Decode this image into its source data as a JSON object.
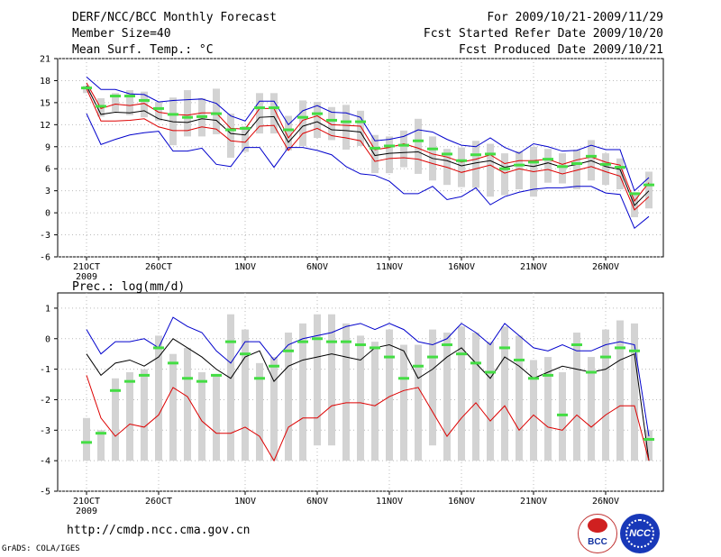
{
  "header": {
    "title": "DERF/NCC/BCC Monthly Forecast",
    "member_size": "Member Size=40",
    "variable": "Mean Surf. Temp.: °C",
    "period": "For 2009/10/21-2009/11/29",
    "fcst_started": "Fcst Started Refer Date 2009/10/20",
    "fcst_produced": "Fcst Produced Date 2009/10/21"
  },
  "footer": {
    "url": "http://cmdp.ncc.cma.gov.cn",
    "credit": "GrADS: COLA/IGES",
    "logo_bcc": "BCC",
    "logo_ncc": "NCC"
  },
  "colors": {
    "ensemble_bar": "#d3d3d3",
    "member_mark": "#44dd44",
    "max_line": "#0000cc",
    "mean_line": "#000000",
    "min_line": "#dd0000"
  },
  "chart_data": [
    {
      "type": "line",
      "title": "Mean Surf. Temp.: °C",
      "ylim": [
        -6,
        21
      ],
      "yticks": [
        "21",
        "18",
        "15",
        "12",
        "9",
        "6",
        "3",
        "0",
        "-3",
        "-6"
      ],
      "xtick_labels": [
        "21OCT",
        "26OCT",
        "1NOV",
        "6NOV",
        "11NOV",
        "16NOV",
        "21NOV",
        "26NOV"
      ],
      "year_label": "2009",
      "days": 40,
      "series": [
        {
          "name": "max",
          "values": [
            18.5,
            16.8,
            16.8,
            16.2,
            16.1,
            15.1,
            15.3,
            15.4,
            15.5,
            14.9,
            13.2,
            12.5,
            15.2,
            15.2,
            12.0,
            13.9,
            14.6,
            13.7,
            13.6,
            13.0,
            9.8,
            10.0,
            10.4,
            11.3,
            11.0,
            10.0,
            9.2,
            9.0,
            10.2,
            8.9,
            8.1,
            9.4,
            9.0,
            8.4,
            8.5,
            9.2,
            8.6,
            8.6,
            3.0,
            4.8
          ]
        },
        {
          "name": "upper",
          "values": [
            17.7,
            14.2,
            14.8,
            14.6,
            14.9,
            13.7,
            13.4,
            13.3,
            13.6,
            13.6,
            11.5,
            11.4,
            14.2,
            14.2,
            10.2,
            12.6,
            13.2,
            12.0,
            11.9,
            11.8,
            8.6,
            8.9,
            9.4,
            8.8,
            8.0,
            7.6,
            6.9,
            7.3,
            7.9,
            6.7,
            7.1,
            7.1,
            7.3,
            6.6,
            7.2,
            7.6,
            6.9,
            6.5,
            1.6,
            4.1
          ]
        },
        {
          "name": "mean",
          "values": [
            17.3,
            13.4,
            13.7,
            13.6,
            13.9,
            12.8,
            12.4,
            12.3,
            12.8,
            12.6,
            10.8,
            10.6,
            13.0,
            13.1,
            9.6,
            11.8,
            12.4,
            11.3,
            11.2,
            11.0,
            7.8,
            8.1,
            8.2,
            8.3,
            7.4,
            7.1,
            6.4,
            6.8,
            7.1,
            6.2,
            6.6,
            6.3,
            6.8,
            6.2,
            6.6,
            7.1,
            6.3,
            5.9,
            1.0,
            3.0
          ]
        },
        {
          "name": "lower",
          "values": [
            16.9,
            12.5,
            12.5,
            12.6,
            12.8,
            11.7,
            11.2,
            11.2,
            11.7,
            11.4,
            9.8,
            9.6,
            11.8,
            11.9,
            8.5,
            10.8,
            11.5,
            10.5,
            10.2,
            9.8,
            7.0,
            7.4,
            7.5,
            7.3,
            6.7,
            6.2,
            5.5,
            6.0,
            6.5,
            5.4,
            6.0,
            5.6,
            5.9,
            5.3,
            5.8,
            6.3,
            5.6,
            5.0,
            0.4,
            2.2
          ]
        },
        {
          "name": "min",
          "values": [
            13.5,
            9.3,
            10.0,
            10.6,
            10.9,
            11.1,
            8.4,
            8.4,
            8.8,
            6.6,
            6.3,
            8.9,
            8.9,
            6.2,
            8.9,
            8.9,
            8.5,
            7.9,
            6.3,
            5.3,
            5.1,
            4.3,
            2.6,
            2.6,
            3.6,
            1.8,
            2.2,
            3.4,
            1.1,
            2.2,
            2.8,
            3.2,
            3.4,
            3.4,
            3.6,
            3.6,
            2.7,
            2.5,
            -2.1,
            -0.5
          ]
        },
        {
          "name": "members",
          "values": [
            17.0,
            14.5,
            15.9,
            15.9,
            15.3,
            14.2,
            13.4,
            13.0,
            13.1,
            13.5,
            11.3,
            11.5,
            14.3,
            14.3,
            11.3,
            13.0,
            13.5,
            12.6,
            12.4,
            12.4,
            8.8,
            9.1,
            9.2,
            9.8,
            8.7,
            8.0,
            7.1,
            7.9,
            8.0,
            6.0,
            6.5,
            6.9,
            7.3,
            6.3,
            6.7,
            7.7,
            6.6,
            6.2,
            2.6,
            3.8
          ]
        }
      ],
      "bars": [
        {
          "low": 16.3,
          "high": 17.3
        },
        {
          "low": 13.1,
          "high": 15.6
        },
        {
          "low": 13.8,
          "high": 16.3
        },
        {
          "low": 13.3,
          "high": 16.7
        },
        {
          "low": 13.0,
          "high": 16.5
        },
        {
          "low": 12.5,
          "high": 15.1
        },
        {
          "low": 9.2,
          "high": 15.7
        },
        {
          "low": 10.4,
          "high": 16.7
        },
        {
          "low": 10.4,
          "high": 15.6
        },
        {
          "low": 10.7,
          "high": 16.9
        },
        {
          "low": 7.5,
          "high": 13.5
        },
        {
          "low": 8.3,
          "high": 11.8
        },
        {
          "low": 10.8,
          "high": 16.3
        },
        {
          "low": 10.8,
          "high": 16.3
        },
        {
          "low": 8.5,
          "high": 13.2
        },
        {
          "low": 9.1,
          "high": 15.3
        },
        {
          "low": 10.2,
          "high": 15.1
        },
        {
          "low": 9.9,
          "high": 14.4
        },
        {
          "low": 8.6,
          "high": 14.7
        },
        {
          "low": 9.1,
          "high": 13.9
        },
        {
          "low": 5.4,
          "high": 10.6
        },
        {
          "low": 5.4,
          "high": 10.4
        },
        {
          "low": 6.2,
          "high": 11.2
        },
        {
          "low": 5.3,
          "high": 12.8
        },
        {
          "low": 4.4,
          "high": 10.4
        },
        {
          "low": 3.8,
          "high": 8.7
        },
        {
          "low": 3.5,
          "high": 8.9
        },
        {
          "low": 3.4,
          "high": 9.8
        },
        {
          "low": 2.2,
          "high": 9.4
        },
        {
          "low": 2.4,
          "high": 8.1
        },
        {
          "low": 3.2,
          "high": 8.4
        },
        {
          "low": 2.2,
          "high": 9.0
        },
        {
          "low": 4.1,
          "high": 8.7
        },
        {
          "low": 4.0,
          "high": 8.1
        },
        {
          "low": 3.2,
          "high": 8.6
        },
        {
          "low": 4.4,
          "high": 9.9
        },
        {
          "low": 3.8,
          "high": 8.1
        },
        {
          "low": 3.2,
          "high": 7.4
        },
        {
          "low": -0.6,
          "high": 2.8
        },
        {
          "low": 0.6,
          "high": 5.6
        }
      ]
    },
    {
      "type": "line",
      "title": "Prec.: log(mm/d)",
      "ylim": [
        -5,
        1.5
      ],
      "yticks": [
        "1",
        "0",
        "-1",
        "-2",
        "-3",
        "-4",
        "-5"
      ],
      "xtick_labels": [
        "21OCT",
        "26OCT",
        "1NOV",
        "6NOV",
        "11NOV",
        "16NOV",
        "21NOV",
        "26NOV"
      ],
      "year_label": "2009",
      "days": 40,
      "series": [
        {
          "name": "max",
          "values": [
            0.3,
            -0.5,
            -0.1,
            -0.1,
            0.0,
            -0.3,
            0.7,
            0.4,
            0.2,
            -0.4,
            -0.8,
            -0.1,
            -0.1,
            -0.7,
            -0.2,
            0.0,
            0.1,
            0.2,
            0.4,
            0.5,
            0.3,
            0.5,
            0.3,
            -0.1,
            -0.2,
            0.0,
            0.5,
            0.2,
            -0.2,
            0.5,
            0.1,
            -0.3,
            -0.4,
            -0.2,
            -0.4,
            -0.4,
            -0.2,
            -0.1,
            -0.2,
            -3.2
          ]
        },
        {
          "name": "mean",
          "values": [
            -0.5,
            -1.2,
            -0.8,
            -0.7,
            -0.9,
            -0.6,
            0.0,
            -0.3,
            -0.6,
            -1.0,
            -1.3,
            -0.6,
            -0.4,
            -1.4,
            -0.9,
            -0.7,
            -0.6,
            -0.5,
            -0.6,
            -0.7,
            -0.3,
            -0.2,
            -0.4,
            -1.3,
            -1.0,
            -0.6,
            -0.3,
            -0.8,
            -1.3,
            -0.6,
            -0.9,
            -1.3,
            -1.1,
            -0.9,
            -1.0,
            -1.1,
            -1.0,
            -0.7,
            -0.5,
            -4.0
          ]
        },
        {
          "name": "min",
          "values": [
            -1.2,
            -2.6,
            -3.2,
            -2.8,
            -2.9,
            -2.5,
            -1.6,
            -1.9,
            -2.7,
            -3.1,
            -3.1,
            -2.9,
            -3.2,
            -4.0,
            -2.9,
            -2.6,
            -2.6,
            -2.2,
            -2.1,
            -2.1,
            -2.2,
            -1.9,
            -1.7,
            -1.6,
            -2.4,
            -3.2,
            -2.6,
            -2.1,
            -2.7,
            -2.2,
            -3.0,
            -2.5,
            -2.9,
            -3.0,
            -2.5,
            -2.9,
            -2.5,
            -2.2,
            -2.2,
            -4.0
          ]
        },
        {
          "name": "members",
          "values": [
            -3.4,
            -3.1,
            -1.7,
            -1.4,
            -1.2,
            -0.3,
            -0.8,
            -1.3,
            -1.4,
            -1.2,
            -0.1,
            -0.5,
            -1.3,
            -0.9,
            -0.4,
            -0.1,
            0.0,
            -0.1,
            -0.1,
            -0.2,
            -0.3,
            -0.6,
            -1.3,
            -0.9,
            -0.6,
            -0.2,
            -0.5,
            -0.8,
            -1.1,
            -0.3,
            -0.7,
            -1.3,
            -1.2,
            -2.5,
            -0.2,
            -1.1,
            -0.6,
            -0.3,
            -0.4,
            -3.3
          ]
        }
      ],
      "bars": [
        {
          "low": -4.0,
          "high": -2.6
        },
        {
          "low": -4.0,
          "high": -3.0
        },
        {
          "low": -4.0,
          "high": -1.3
        },
        {
          "low": -4.0,
          "high": -1.1
        },
        {
          "low": -4.0,
          "high": -1.0
        },
        {
          "low": -4.0,
          "high": 0.1
        },
        {
          "low": -4.0,
          "high": -0.5
        },
        {
          "low": -4.0,
          "high": -0.3
        },
        {
          "low": -4.0,
          "high": -1.1
        },
        {
          "low": -4.0,
          "high": -1.2
        },
        {
          "low": -4.0,
          "high": 0.8
        },
        {
          "low": -4.0,
          "high": 0.3
        },
        {
          "low": -4.0,
          "high": -0.8
        },
        {
          "low": -4.0,
          "high": -0.6
        },
        {
          "low": -4.0,
          "high": 0.2
        },
        {
          "low": -4.0,
          "high": 0.5
        },
        {
          "low": -3.5,
          "high": 0.8
        },
        {
          "low": -3.5,
          "high": 0.8
        },
        {
          "low": -4.0,
          "high": 0.5
        },
        {
          "low": -4.0,
          "high": 0.1
        },
        {
          "low": -4.0,
          "high": -0.1
        },
        {
          "low": -4.0,
          "high": 0.3
        },
        {
          "low": -4.0,
          "high": -0.2
        },
        {
          "low": -4.0,
          "high": -0.2
        },
        {
          "low": -3.5,
          "high": 0.3
        },
        {
          "low": -4.0,
          "high": 0.2
        },
        {
          "low": -4.0,
          "high": 0.4
        },
        {
          "low": -4.0,
          "high": 0.2
        },
        {
          "low": -4.0,
          "high": -0.1
        },
        {
          "low": -4.0,
          "high": 0.4
        },
        {
          "low": -4.0,
          "high": 0.1
        },
        {
          "low": -4.0,
          "high": -0.7
        },
        {
          "low": -4.0,
          "high": -0.6
        },
        {
          "low": -4.0,
          "high": -1.1
        },
        {
          "low": -4.0,
          "high": 0.2
        },
        {
          "low": -4.0,
          "high": -0.6
        },
        {
          "low": -4.0,
          "high": 0.3
        },
        {
          "low": -4.0,
          "high": 0.6
        },
        {
          "low": -4.0,
          "high": 0.5
        },
        {
          "low": -4.0,
          "high": -3.0
        }
      ]
    }
  ]
}
